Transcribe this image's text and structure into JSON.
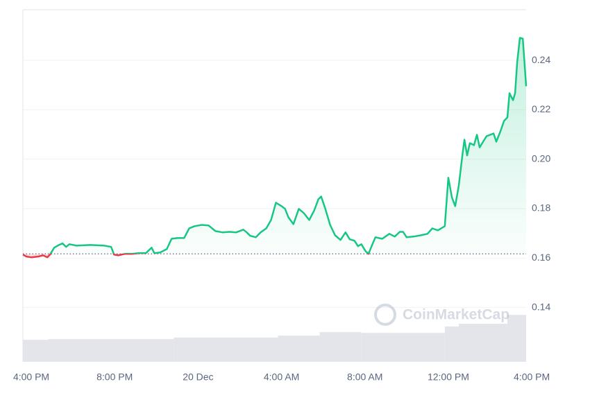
{
  "chart_data": {
    "type": "line",
    "x": [
      -0.4,
      -0.23,
      0,
      0.33,
      0.57,
      0.77,
      0.9,
      1.1,
      1.33,
      1.5,
      1.67,
      1.83,
      2.17,
      2.83,
      3.5,
      3.83,
      3.97,
      4.17,
      4.5,
      4.83,
      5.17,
      5.5,
      5.77,
      5.9,
      6.17,
      6.5,
      6.73,
      7,
      7.33,
      7.57,
      7.83,
      8.17,
      8.5,
      8.83,
      9.17,
      9.5,
      9.83,
      10.17,
      10.33,
      10.5,
      10.77,
      11,
      11.27,
      11.5,
      11.73,
      12,
      12.17,
      12.33,
      12.57,
      12.83,
      13.07,
      13.33,
      13.57,
      13.77,
      13.9,
      14.1,
      14.33,
      14.57,
      14.83,
      15.07,
      15.27,
      15.5,
      15.67,
      15.83,
      16.03,
      16.17,
      16.33,
      16.5,
      16.83,
      17.17,
      17.43,
      17.67,
      17.83,
      18,
      18.33,
      18.67,
      19,
      19.23,
      19.5,
      19.83,
      20,
      20.17,
      20.33,
      20.5,
      20.67,
      20.77,
      20.9,
      21.03,
      21.23,
      21.37,
      21.5,
      21.83,
      22.17,
      22.3,
      22.5,
      22.67,
      22.83,
      22.93,
      23.1,
      23.2,
      23.3,
      23.43,
      23.57,
      23.73
    ],
    "values": [
      0.1614,
      0.1606,
      0.1603,
      0.1606,
      0.1611,
      0.1603,
      0.1614,
      0.1642,
      0.1653,
      0.1659,
      0.1645,
      0.1656,
      0.165,
      0.1653,
      0.165,
      0.1645,
      0.1614,
      0.1611,
      0.1617,
      0.1617,
      0.162,
      0.162,
      0.1642,
      0.162,
      0.1622,
      0.1636,
      0.1678,
      0.1681,
      0.1681,
      0.172,
      0.1729,
      0.1734,
      0.1732,
      0.1709,
      0.1704,
      0.1706,
      0.1704,
      0.1715,
      0.1704,
      0.169,
      0.1684,
      0.1704,
      0.172,
      0.1754,
      0.1824,
      0.181,
      0.1799,
      0.1765,
      0.1737,
      0.1799,
      0.1782,
      0.1754,
      0.1793,
      0.1838,
      0.1849,
      0.1799,
      0.1734,
      0.1692,
      0.1673,
      0.1704,
      0.1676,
      0.167,
      0.1648,
      0.1656,
      0.1628,
      0.1617,
      0.165,
      0.1684,
      0.1678,
      0.1698,
      0.1687,
      0.1706,
      0.1706,
      0.1684,
      0.1687,
      0.1692,
      0.1698,
      0.172,
      0.1712,
      0.1729,
      0.1925,
      0.1846,
      0.181,
      0.1894,
      0.2015,
      0.2079,
      0.2015,
      0.2065,
      0.2057,
      0.2099,
      0.2048,
      0.2093,
      0.2104,
      0.2071,
      0.2113,
      0.2155,
      0.2169,
      0.2267,
      0.2239,
      0.2267,
      0.2393,
      0.2491,
      0.2488,
      0.2295
    ],
    "baseline": 0.1617,
    "up_color": "#16c784",
    "down_color": "#ea3943",
    "volume": {
      "bins": [
        -0.4,
        0.83,
        6.83,
        11.83,
        13.83,
        15.83,
        19.83,
        20.5,
        22.83,
        23.73
      ],
      "values": [
        0.1269,
        0.1272,
        0.1278,
        0.1286,
        0.13,
        0.1297,
        0.1323,
        0.1334,
        0.137
      ],
      "color": "#e3e5ea"
    },
    "xlim": [
      -0.4,
      23.73
    ],
    "ylim": [
      0.118,
      0.2605
    ],
    "xticks": [
      {
        "value": 0,
        "label": "4:00 PM"
      },
      {
        "value": 4,
        "label": "8:00 PM"
      },
      {
        "value": 8,
        "label": "20 Dec"
      },
      {
        "value": 12,
        "label": "4:00 AM"
      },
      {
        "value": 16,
        "label": "8:00 AM"
      },
      {
        "value": 20,
        "label": "12:00 PM"
      },
      {
        "value": 24,
        "label": "4:00 PM"
      }
    ],
    "yticks": [
      0.14,
      0.16,
      0.18,
      {
        "value": 0.2,
        "label": "0.20"
      },
      0.22,
      0.24
    ],
    "grid": true,
    "watermark": "CoinMarketCap"
  }
}
